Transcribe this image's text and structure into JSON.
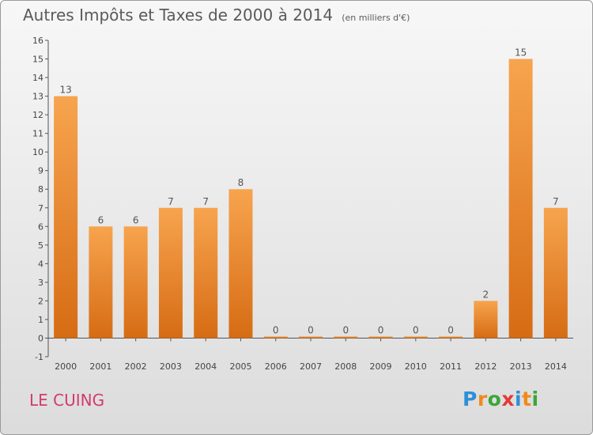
{
  "header": {
    "title": "Autres Impôts et Taxes de 2000 à 2014",
    "unit": "(en milliers d'€)"
  },
  "footer": {
    "place": "LE CUING",
    "logo": {
      "letters": [
        "P",
        "r",
        "o",
        "x",
        "i",
        "t",
        "i"
      ],
      "colors": [
        "#2f8fd6",
        "#f08a1c",
        "#3aa63a",
        "#e23a3a",
        "#2f8fd6",
        "#f08a1c",
        "#3aa63a"
      ]
    }
  },
  "chart_data": {
    "type": "bar",
    "title": "Autres Impôts et Taxes de 2000 à 2014",
    "unit": "(en milliers d'€)",
    "categories": [
      "2000",
      "2001",
      "2002",
      "2003",
      "2004",
      "2005",
      "2006",
      "2007",
      "2008",
      "2009",
      "2010",
      "2011",
      "2012",
      "2013",
      "2014"
    ],
    "values": [
      13,
      6,
      6,
      7,
      7,
      8,
      0,
      0,
      0,
      0,
      0,
      0,
      2,
      15,
      7
    ],
    "ylim": [
      -1,
      16
    ],
    "yticks": [
      -1,
      0,
      1,
      2,
      3,
      4,
      5,
      6,
      7,
      8,
      9,
      10,
      11,
      12,
      13,
      14,
      15,
      16
    ],
    "grid": false,
    "colors": {
      "bar_light": "#f7a44e",
      "bar_dark": "#d66c14",
      "axis": "#555555"
    }
  }
}
